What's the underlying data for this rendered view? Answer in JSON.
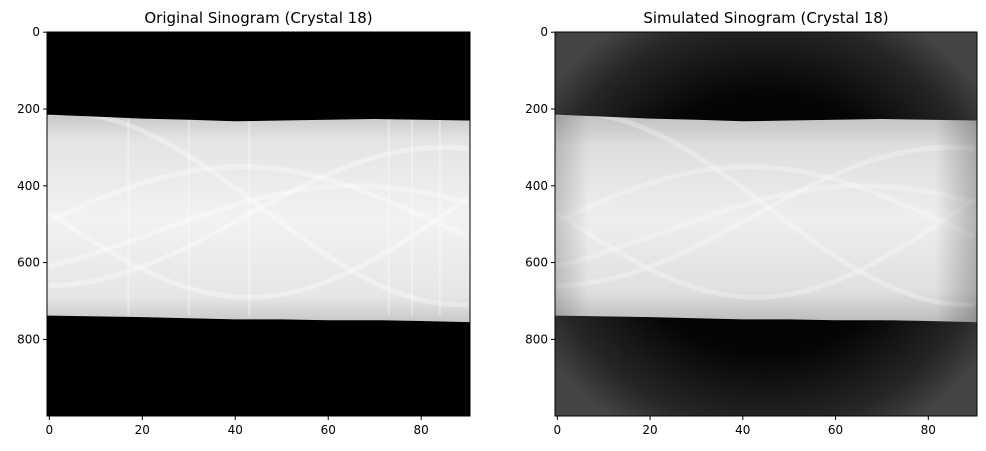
{
  "chart_data": [
    {
      "type": "heatmap",
      "title": "Original Sinogram (Crystal 18)",
      "xlabel": "",
      "ylabel": "",
      "xlim": [
        -0.5,
        90.5
      ],
      "ylim": [
        999.5,
        -0.5
      ],
      "x_ticks": [
        0,
        20,
        40,
        60,
        80
      ],
      "y_ticks": [
        0,
        200,
        400,
        600,
        800
      ],
      "colormap": "gray",
      "grid": false,
      "image": {
        "object_rows": [
          210,
          750
        ],
        "background_level": 0.0,
        "object_level": 0.9,
        "edge_top_rows": [
          [
            0,
            215
          ],
          [
            10,
            220
          ],
          [
            20,
            225
          ],
          [
            30,
            228
          ],
          [
            40,
            232
          ],
          [
            50,
            230
          ],
          [
            60,
            228
          ],
          [
            70,
            226
          ],
          [
            80,
            228
          ],
          [
            90,
            230
          ]
        ],
        "edge_bottom_rows": [
          [
            0,
            738
          ],
          [
            10,
            740
          ],
          [
            20,
            742
          ],
          [
            30,
            745
          ],
          [
            40,
            748
          ],
          [
            50,
            748
          ],
          [
            60,
            750
          ],
          [
            70,
            750
          ],
          [
            80,
            752
          ],
          [
            90,
            755
          ]
        ],
        "vertical_streak_columns": [
          17,
          30,
          43,
          73,
          78,
          84
        ]
      }
    },
    {
      "type": "heatmap",
      "title": "Simulated Sinogram (Crystal 18)",
      "xlabel": "",
      "ylabel": "",
      "xlim": [
        -0.5,
        90.5
      ],
      "ylim": [
        999.5,
        -0.5
      ],
      "x_ticks": [
        0,
        20,
        40,
        60,
        80
      ],
      "y_ticks": [
        0,
        200,
        400,
        600,
        800
      ],
      "colormap": "gray",
      "grid": false,
      "image": {
        "object_rows": [
          210,
          750
        ],
        "background_level": 0.22,
        "object_level": 0.85,
        "edge_top_rows": [
          [
            0,
            215
          ],
          [
            10,
            220
          ],
          [
            20,
            225
          ],
          [
            30,
            228
          ],
          [
            40,
            232
          ],
          [
            50,
            230
          ],
          [
            60,
            228
          ],
          [
            70,
            226
          ],
          [
            80,
            228
          ],
          [
            90,
            230
          ]
        ],
        "edge_bottom_rows": [
          [
            0,
            738
          ],
          [
            10,
            740
          ],
          [
            20,
            742
          ],
          [
            30,
            745
          ],
          [
            40,
            748
          ],
          [
            50,
            748
          ],
          [
            60,
            750
          ],
          [
            70,
            750
          ],
          [
            80,
            752
          ],
          [
            90,
            755
          ]
        ],
        "vertical_streak_columns": []
      }
    }
  ]
}
